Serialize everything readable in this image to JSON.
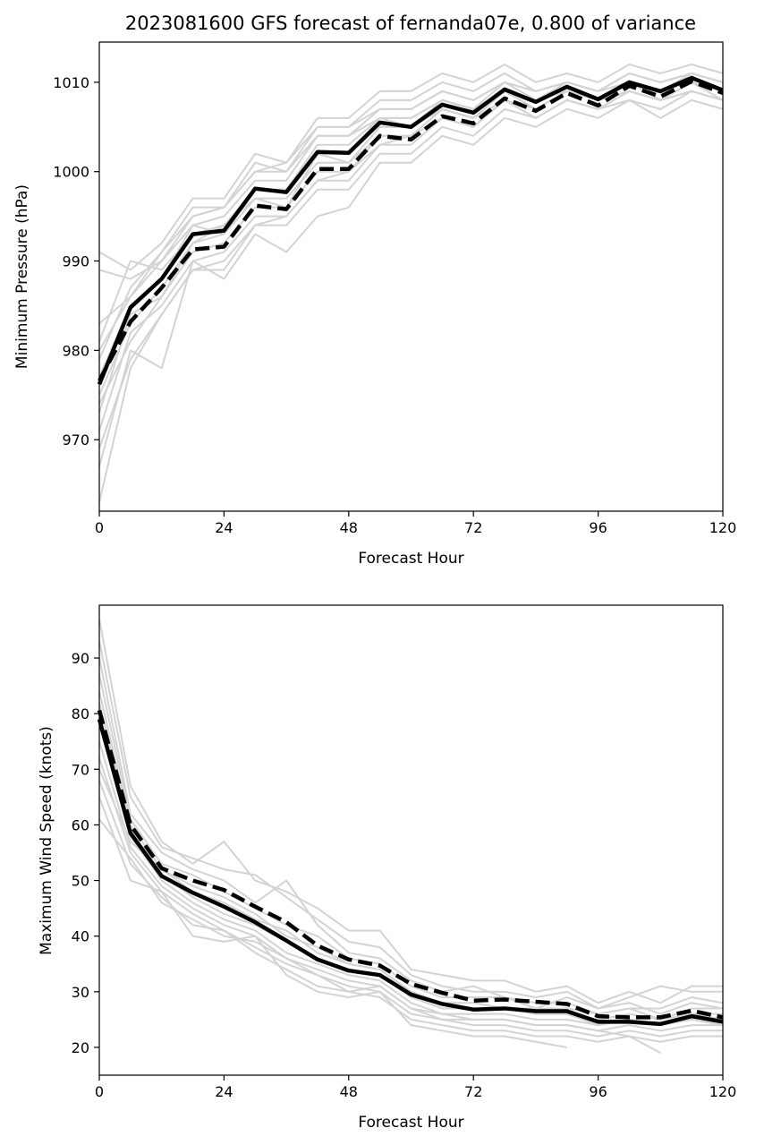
{
  "chart_data": [
    {
      "type": "line",
      "title": "2023081600 GFS forecast of fernanda07e, 0.800 of variance",
      "xlabel": "Forecast Hour",
      "ylabel": "Minimum Pressure (hPa)",
      "xlim": [
        0,
        120
      ],
      "ylim": [
        962,
        1014.5
      ],
      "xticks": [
        0,
        24,
        48,
        72,
        96,
        120
      ],
      "yticks": [
        970,
        980,
        990,
        1000,
        1010
      ],
      "x": [
        0,
        6,
        12,
        18,
        24,
        30,
        36,
        42,
        48,
        54,
        60,
        66,
        72,
        78,
        84,
        90,
        96,
        102,
        108,
        114,
        120
      ],
      "series": [
        {
          "style": "solid-black",
          "values": [
            976.2,
            984.8,
            988.0,
            993.0,
            993.4,
            998.1,
            997.7,
            1002.2,
            1002.1,
            1005.5,
            1005.0,
            1007.5,
            1006.6,
            1009.2,
            1007.8,
            1009.5,
            1008.1,
            1010.0,
            1009.0,
            1010.5,
            1009.1
          ]
        },
        {
          "style": "dashed-black",
          "values": [
            976.6,
            983.2,
            987.0,
            991.3,
            991.6,
            996.2,
            995.8,
            1000.3,
            1000.3,
            1004.0,
            1003.6,
            1006.2,
            1005.4,
            1008.2,
            1006.8,
            1008.8,
            1007.4,
            1009.6,
            1008.4,
            1010.1,
            1008.8
          ]
        },
        {
          "style": "ensemble-gray",
          "values": [
            991.0,
            989.0,
            992.0,
            997.0,
            997.0,
            1002.0,
            1001.0,
            1006.0,
            1006.0,
            1009.0,
            1009.0,
            1011.0,
            1010.0,
            1012.0,
            1010.0,
            1011.0,
            1010.0,
            1012.0,
            1011.0,
            1012.0,
            1011.0
          ]
        },
        {
          "style": "ensemble-gray",
          "values": [
            989.0,
            988.0,
            990.0,
            995.0,
            996.0,
            1000.0,
            1000.0,
            1005.0,
            1005.0,
            1008.0,
            1008.0,
            1010.0,
            1009.0,
            1011.0,
            1009.0,
            1010.0,
            1009.0,
            1011.0,
            1010.0,
            1011.0,
            1010.0
          ]
        },
        {
          "style": "ensemble-gray",
          "values": [
            983.0,
            986.0,
            990.0,
            994.0,
            995.0,
            999.0,
            999.0,
            1004.0,
            1004.0,
            1007.0,
            1007.0,
            1009.0,
            1008.0,
            1010.0,
            1009.0,
            1010.0,
            1009.0,
            1011.0,
            1010.0,
            1011.0,
            1010.0
          ]
        },
        {
          "style": "ensemble-gray",
          "values": [
            981.0,
            990.0,
            989.0,
            993.0,
            994.0,
            998.0,
            998.0,
            1003.0,
            1003.0,
            1006.0,
            1006.0,
            1008.0,
            1007.0,
            1010.0,
            1008.0,
            1010.0,
            1009.0,
            1010.0,
            1009.0,
            1011.0,
            1010.0
          ]
        },
        {
          "style": "ensemble-gray",
          "values": [
            979.0,
            987.0,
            991.0,
            996.0,
            996.0,
            1001.0,
            1000.0,
            1004.0,
            1004.0,
            1006.0,
            1006.0,
            1008.0,
            1007.0,
            1009.0,
            1008.0,
            1009.0,
            1008.0,
            1010.0,
            1009.0,
            1010.0,
            1009.0
          ]
        },
        {
          "style": "ensemble-gray",
          "values": [
            977.0,
            985.0,
            988.0,
            994.0,
            993.0,
            998.0,
            998.0,
            1002.0,
            1002.0,
            1006.0,
            1005.0,
            1008.0,
            1007.0,
            1009.0,
            1008.0,
            1009.0,
            1008.0,
            1010.0,
            1009.0,
            1010.0,
            1009.0
          ]
        },
        {
          "style": "ensemble-gray",
          "values": [
            975.0,
            983.0,
            987.0,
            992.0,
            993.0,
            997.0,
            997.0,
            1001.0,
            1001.0,
            1005.0,
            1005.0,
            1007.0,
            1006.0,
            1009.0,
            1007.0,
            1009.0,
            1008.0,
            1009.0,
            1008.0,
            1010.0,
            1009.0
          ]
        },
        {
          "style": "ensemble-gray",
          "values": [
            973.0,
            984.0,
            986.0,
            991.0,
            992.0,
            996.0,
            996.0,
            1000.0,
            1000.0,
            1004.0,
            1004.0,
            1007.0,
            1006.0,
            1008.0,
            1007.0,
            1009.0,
            1008.0,
            1009.0,
            1008.0,
            1010.0,
            1008.0
          ]
        },
        {
          "style": "ensemble-gray",
          "values": [
            971.0,
            982.0,
            985.0,
            990.0,
            991.0,
            995.0,
            995.0,
            999.0,
            999.0,
            1003.0,
            1003.0,
            1006.0,
            1005.0,
            1008.0,
            1006.0,
            1008.0,
            1007.0,
            1009.0,
            1008.0,
            1009.0,
            1008.0
          ]
        },
        {
          "style": "ensemble-gray",
          "values": [
            969.0,
            979.0,
            984.0,
            989.0,
            989.0,
            994.0,
            994.0,
            998.0,
            998.0,
            1002.0,
            1002.0,
            1005.0,
            1004.0,
            1007.0,
            1006.0,
            1008.0,
            1007.0,
            1008.0,
            1007.0,
            1009.0,
            1008.0
          ]
        },
        {
          "style": "ensemble-gray",
          "values": [
            967.0,
            980.0,
            978.0,
            990.0,
            988.0,
            993.0,
            991.0,
            995.0,
            996.0,
            1001.0,
            1001.0,
            1004.0,
            1003.0,
            1006.0,
            1005.0,
            1007.0,
            1006.0,
            1008.0,
            1006.0,
            1008.0,
            1007.0
          ]
        },
        {
          "style": "ensemble-gray",
          "values": [
            963.0,
            978.0,
            984.0,
            989.0,
            990.0,
            994.0,
            995.0,
            999.0,
            1000.0,
            1003.0,
            1004.0,
            1006.0,
            1005.0,
            1008.0,
            1006.0,
            1008.0,
            1007.0,
            1009.0,
            1008.0,
            1009.0,
            1008.0
          ]
        },
        {
          "style": "ensemble-gray",
          "values": [
            980.0,
            986.0,
            991.0,
            995.0,
            996.0,
            1000.0,
            1001.0,
            1005.0,
            1005.0,
            1007.0,
            1007.0,
            1009.0,
            1008.0,
            1010.0,
            1009.0,
            1010.0,
            1009.0,
            1011.0,
            1010.0,
            1011.0,
            1010.0
          ]
        },
        {
          "style": "ensemble-gray",
          "values": [
            974.0,
            981.0,
            986.0,
            992.0,
            994.0,
            997.0,
            996.0,
            1002.0,
            1001.0,
            1004.0,
            1004.0,
            1007.0,
            1006.0,
            1009.0,
            1007.0,
            1009.0,
            1008.0,
            1010.0,
            1008.0,
            1010.0,
            1009.0
          ]
        }
      ]
    },
    {
      "type": "line",
      "title": "",
      "xlabel": "Forecast Hour",
      "ylabel": "Maximum Wind Speed (knots)",
      "xlim": [
        0,
        120
      ],
      "ylim": [
        15,
        99.5
      ],
      "xticks": [
        0,
        24,
        48,
        72,
        96,
        120
      ],
      "yticks": [
        20,
        30,
        40,
        50,
        60,
        70,
        80,
        90
      ],
      "x": [
        0,
        6,
        12,
        18,
        24,
        30,
        36,
        42,
        48,
        54,
        60,
        66,
        72,
        78,
        84,
        90,
        96,
        102,
        108,
        114,
        120
      ],
      "series": [
        {
          "style": "solid-black",
          "values": [
            79.0,
            58.5,
            50.8,
            47.8,
            45.3,
            42.5,
            39.2,
            35.8,
            33.8,
            33.0,
            29.5,
            27.8,
            26.8,
            27.0,
            26.5,
            26.5,
            24.6,
            24.6,
            24.2,
            25.6,
            24.6
          ]
        },
        {
          "style": "dashed-black",
          "values": [
            80.6,
            60.0,
            52.2,
            50.0,
            48.3,
            45.3,
            42.5,
            38.3,
            35.8,
            34.7,
            31.4,
            29.8,
            28.4,
            28.6,
            28.2,
            27.8,
            25.6,
            25.4,
            25.4,
            26.6,
            25.4
          ]
        },
        {
          "style": "ensemble-gray",
          "values": [
            97.0,
            67.0,
            57.0,
            53.0,
            57.0,
            50.0,
            48.0,
            45.0,
            41.0,
            41.0,
            34.0,
            33.0,
            32.0,
            32.0,
            30.0,
            31.0,
            28.0,
            30.0,
            28.0,
            31.0,
            31.0
          ]
        },
        {
          "style": "ensemble-gray",
          "values": [
            93.0,
            65.0,
            56.0,
            54.0,
            52.0,
            51.0,
            47.0,
            43.0,
            39.0,
            38.0,
            33.0,
            31.0,
            30.0,
            30.0,
            29.0,
            30.0,
            27.0,
            29.0,
            31.0,
            30.0,
            30.0
          ]
        },
        {
          "style": "ensemble-gray",
          "values": [
            90.0,
            62.0,
            55.0,
            52.0,
            50.0,
            46.0,
            50.0,
            42.0,
            37.0,
            36.0,
            32.0,
            30.0,
            31.0,
            29.0,
            28.0,
            28.0,
            26.0,
            27.0,
            27.0,
            29.0,
            28.0
          ]
        },
        {
          "style": "ensemble-gray",
          "values": [
            87.0,
            61.0,
            53.0,
            51.0,
            48.0,
            45.0,
            42.0,
            40.0,
            36.0,
            35.0,
            31.0,
            29.0,
            29.0,
            29.0,
            27.0,
            29.0,
            27.0,
            28.0,
            26.0,
            28.0,
            27.0
          ]
        },
        {
          "style": "ensemble-gray",
          "values": [
            84.0,
            60.0,
            52.0,
            49.0,
            47.0,
            44.0,
            40.0,
            38.0,
            35.0,
            34.0,
            30.0,
            28.0,
            28.0,
            27.0,
            27.0,
            27.0,
            26.0,
            27.0,
            25.0,
            27.0,
            27.0
          ]
        },
        {
          "style": "ensemble-gray",
          "values": [
            82.0,
            59.0,
            51.0,
            47.0,
            44.0,
            42.0,
            39.0,
            36.0,
            34.0,
            33.0,
            29.0,
            27.0,
            27.0,
            27.0,
            26.0,
            26.0,
            25.0,
            26.0,
            25.0,
            26.0,
            25.0
          ]
        },
        {
          "style": "ensemble-gray",
          "values": [
            78.0,
            58.0,
            50.0,
            46.0,
            43.0,
            41.0,
            37.0,
            35.0,
            33.0,
            32.0,
            28.0,
            26.0,
            26.0,
            26.0,
            25.0,
            25.0,
            24.0,
            25.0,
            24.0,
            25.0,
            24.0
          ]
        },
        {
          "style": "ensemble-gray",
          "values": [
            75.0,
            56.0,
            49.0,
            45.0,
            42.0,
            40.0,
            36.0,
            34.0,
            32.0,
            31.0,
            27.0,
            25.0,
            25.0,
            25.0,
            24.0,
            24.0,
            23.0,
            24.0,
            23.0,
            24.0,
            24.0
          ]
        },
        {
          "style": "ensemble-gray",
          "values": [
            72.0,
            55.0,
            48.0,
            44.0,
            41.0,
            38.0,
            35.0,
            33.0,
            31.0,
            30.0,
            26.0,
            25.0,
            24.0,
            24.0,
            23.0,
            23.0,
            22.0,
            23.0,
            22.0,
            23.0,
            23.0
          ]
        },
        {
          "style": "ensemble-gray",
          "values": [
            68.0,
            53.0,
            47.0,
            42.0,
            41.0,
            37.0,
            34.0,
            31.0,
            30.0,
            29.0,
            25.0,
            24.0,
            23.0,
            23.0,
            22.0,
            22.0,
            21.0,
            22.0,
            21.0,
            22.0,
            22.0
          ]
        },
        {
          "style": "ensemble-gray",
          "values": [
            65.0,
            50.0,
            48.0,
            40.0,
            39.0,
            40.0,
            33.0,
            30.0,
            29.0,
            30.0,
            24.0,
            23.0,
            22.0,
            22.0,
            21.0,
            20.0,
            null,
            null,
            null,
            null,
            null
          ]
        },
        {
          "style": "ensemble-gray",
          "values": [
            61.0,
            54.0,
            46.0,
            43.0,
            40.0,
            39.0,
            36.0,
            33.0,
            30.0,
            31.0,
            27.0,
            26.0,
            25.0,
            25.0,
            24.0,
            24.0,
            23.0,
            22.0,
            19.0,
            null,
            null
          ]
        },
        {
          "style": "ensemble-gray",
          "values": [
            70.0,
            57.0,
            52.0,
            48.0,
            46.0,
            43.0,
            41.0,
            37.0,
            35.0,
            34.0,
            30.0,
            28.0,
            27.0,
            27.0,
            26.0,
            26.0,
            24.0,
            25.0,
            24.0,
            26.0,
            26.0
          ]
        }
      ]
    }
  ],
  "colors": {
    "ensemble": "#d3d3d3",
    "mean": "#000000"
  }
}
